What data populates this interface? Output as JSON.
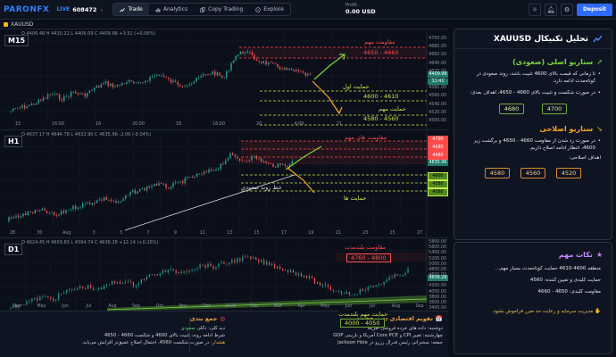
{
  "topbar": {
    "logo_a": "PARON",
    "logo_b": "FX",
    "live_badge": "LIVE",
    "account": "608472",
    "chevron": "⌄",
    "tabs": [
      {
        "label": "Trade",
        "active": true
      },
      {
        "label": "Analytics",
        "active": false
      },
      {
        "label": "Copy Trading",
        "active": false
      },
      {
        "label": "Explore",
        "active": false
      }
    ],
    "profit_label": "Profit",
    "profit_value": "0.00 USD",
    "deposit_label": "Deposit"
  },
  "chart": {
    "symbol": "XAUUSD",
    "m15": {
      "tf": "M15",
      "ohlc": "O 4406.48  H 4410.21  L 4406.09  C 4409.98  +3.51 (+0.08%)",
      "resistance_title": "مقاومت مهم",
      "resistance_zone": "4650 - 4660",
      "support1_title": "حمایت اول",
      "support1_zone": "4600 - 4610",
      "support2_title": "حمایت مهم",
      "support2_zone": "4580 - 4560",
      "price_tag": "4409.98",
      "time_tag": "11:41",
      "y_ticks": [
        "4700.00",
        "4680.00",
        "4660.00",
        "4640.00",
        "4620.00",
        "4600.00",
        "4580.00",
        "4560.00",
        "4540.00",
        "4520.00",
        "4500.00"
      ],
      "x_ticks": [
        "15",
        "16:00",
        "16",
        "20:00",
        "18",
        "16:00",
        "20",
        "4:00",
        "21"
      ]
    },
    "h1": {
      "tf": "H1",
      "ohlc": "O 4637.17  H 4644.78  L 4632.90  C 4635.96  -2.06 (-0.04%)",
      "resistance_title": "مقاومت های مهم",
      "support_title": "حمایت ها",
      "trendline_label": "خط روند صعودی",
      "tags": [
        "4700",
        "4680",
        "4660",
        "4635.96",
        "4600",
        "4580",
        "4560"
      ],
      "x_ticks": [
        "28",
        "30",
        "Aug",
        "3",
        "5",
        "7",
        "9",
        "11",
        "13",
        "15",
        "17",
        "19",
        "21",
        "23",
        "25",
        "27"
      ]
    },
    "d1": {
      "tf": "D1",
      "ohlc": "O 4624.45  H 4659.83  L 4594.74  C 4636.28  +12.14 (+0.26%)",
      "resistance_title": "مقاومت بلندمدت",
      "resistance_zone": "4760 - 4800",
      "support_title": "حمایت مهم بلندمدت",
      "support_zone": "4000 - 4050",
      "y_ticks": [
        "5800.00",
        "5600.00",
        "5400.00",
        "5200.00",
        "5000.00",
        "4800.00",
        "4600.00",
        "4400.00",
        "4200.00",
        "4000.00",
        "3800.00",
        "3600.00",
        "3400.00"
      ],
      "price_tag": "4636.28",
      "x_ticks": [
        "Apr",
        "May",
        "Jun",
        "Jul",
        "Aug",
        "Sep",
        "Oct",
        "Nov",
        "Dec",
        "2026",
        "Feb",
        "Mar",
        "Apr",
        "May",
        "Jun",
        "Jul",
        "Aug",
        "Sep"
      ]
    }
  },
  "bottom": {
    "calendar": {
      "title": "تقویم اقتصادی (این هفته)",
      "lines": [
        "دوشنبه: داده های خرده فروشی آمریکا",
        "چهارشنبه: تغییر CPI و Core PCE آمریکا و بازبینی GDP",
        "جمعه: سخنرانی رئیس فدرال رزرو در Jackson Hole"
      ]
    },
    "summary": {
      "title": "جمع بندی",
      "l1a": "دید کلی: دکلی",
      "l1b": "صعودی",
      "l2a": "شرط ادامه روند: تثبیت بالای 4600 و شکست 4660 - 4650",
      "l3a": "هشدار:",
      "l3b": "در صورت شکست 4560، احتمال اصلاح عمیق‌تر افزایش می‌یابد."
    }
  },
  "panel": {
    "title": "تحلیل تکنیکال XAUUSD",
    "primary": {
      "title": "سناریو اصلی (صعودی)",
      "b1": "تا زمانی که قیمت بالای 4600 تثبیت باشد، روند صعودی در کوتاه‌مدت ادامه دارد.",
      "b2": "در صورت شکست و تثبیت بالای 4660 - 4650، اهداف بعدی:",
      "levels": [
        "4680",
        "4700"
      ]
    },
    "corrective": {
      "title": "سناریو اصلاحی",
      "b1": "در صورت رد شدن از مقاومت 4660 - 4650 و برگشت زیر 4600، انتظار ادامه اصلاح داریم.",
      "sub": "اهداف اصلاحی:",
      "levels": [
        "4580",
        "4560",
        "4520"
      ]
    },
    "important": {
      "title": "نکات مهم",
      "n1": "منطقه 4600-4610 حمایت کوتاه‌مدت بسیار مهم...",
      "n2": "حمایت کلیدی و تعیین کننده: 4560",
      "n3": "مقاومت کلیدی: 4650 - 4660",
      "warn": "مدیریت سرمایه و رعایت حد ضرر فراموش نشود."
    }
  },
  "colors": {
    "accent": "#2f6bff",
    "bull": "#26a69a",
    "bear": "#ef5350",
    "resistance": "#ff4a4a",
    "support": "#c8e64a"
  }
}
